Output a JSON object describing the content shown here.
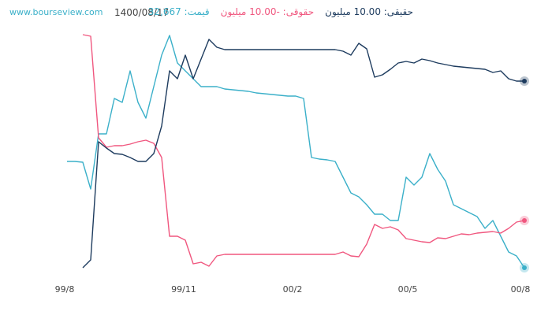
{
  "chart_data": {
    "type": "line",
    "site": "www.bourseview.com",
    "date": "1400/08/17",
    "x": [
      0,
      1,
      2,
      3,
      4,
      5,
      6,
      7,
      8,
      9,
      10,
      11,
      12,
      13,
      14,
      15,
      16,
      17,
      18,
      19,
      20,
      21,
      22,
      23,
      24,
      25,
      26,
      27,
      28,
      29,
      30,
      31,
      32,
      33,
      34,
      35,
      36,
      37,
      38,
      39,
      40,
      41,
      42,
      43,
      44,
      45,
      46,
      47,
      48,
      49,
      50,
      51,
      52,
      53,
      54,
      55,
      56,
      57,
      58
    ],
    "xlim": [
      -0.5,
      58
    ],
    "xticks": [
      {
        "value": -0.3,
        "label": "99/8"
      },
      {
        "value": 14.8,
        "label": "99/11"
      },
      {
        "value": 28.6,
        "label": "00/2"
      },
      {
        "value": 43.2,
        "label": "00/5"
      },
      {
        "value": 57.5,
        "label": "00/8"
      }
    ],
    "ylim": [
      0,
      310
    ],
    "series": [
      {
        "name": "حقیقی: 10.00 میلیون",
        "color": "#1d3b5e",
        "values": [
          null,
          null,
          10,
          20,
          170,
          162,
          155,
          154,
          150,
          145,
          145,
          155,
          190,
          260,
          250,
          280,
          250,
          275,
          300,
          290,
          287,
          287,
          287,
          287,
          287,
          287,
          287,
          287,
          287,
          287,
          287,
          287,
          287,
          287,
          287,
          285,
          280,
          295,
          288,
          252,
          255,
          262,
          270,
          272,
          270,
          275,
          273,
          270,
          268,
          266,
          265,
          264,
          263,
          262,
          258,
          260,
          250,
          247,
          247
        ]
      },
      {
        "name": "حقوقی: -10.00 میلیون",
        "color": "#f0577f",
        "values": [
          null,
          null,
          306,
          304,
          175,
          163,
          165,
          165,
          167,
          170,
          172,
          168,
          150,
          50,
          50,
          45,
          15,
          17,
          12,
          25,
          27,
          27,
          27,
          27,
          27,
          27,
          27,
          27,
          27,
          27,
          27,
          27,
          27,
          27,
          27,
          30,
          25,
          24,
          40,
          65,
          60,
          62,
          58,
          47,
          45,
          43,
          42,
          48,
          47,
          50,
          53,
          52,
          54,
          55,
          56,
          54,
          60,
          68,
          70
        ]
      },
      {
        "name": "قیمت: 32,667",
        "color": "#3bb0c9",
        "values": [
          145,
          145,
          144,
          110,
          180,
          180,
          225,
          220,
          260,
          220,
          200,
          240,
          280,
          305,
          270,
          260,
          250,
          240,
          240,
          240,
          237,
          236,
          235,
          234,
          232,
          231,
          230,
          229,
          228,
          228,
          225,
          150,
          148,
          147,
          145,
          125,
          105,
          100,
          90,
          78,
          78,
          70,
          70,
          125,
          115,
          125,
          155,
          135,
          120,
          90,
          85,
          80,
          75,
          60,
          70,
          50,
          30,
          25,
          10
        ]
      }
    ]
  }
}
